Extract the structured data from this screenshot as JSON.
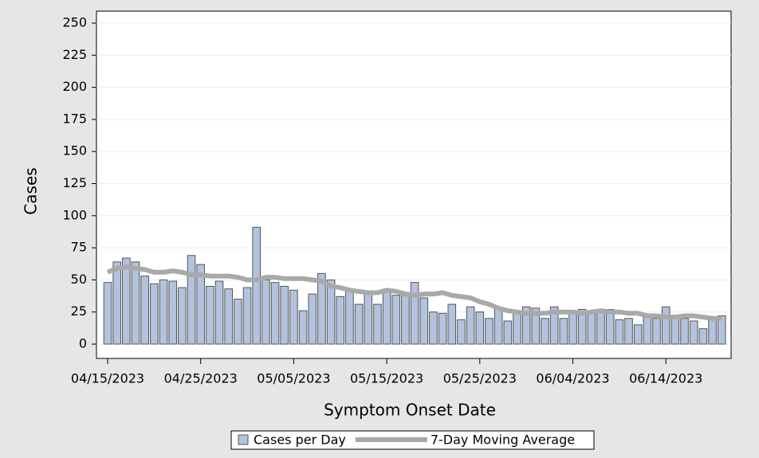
{
  "chart_data": {
    "type": "bar_line",
    "x_label": "Symptom Onset Date",
    "y_label": "Cases",
    "x": [
      "04/15/2023",
      "04/16/2023",
      "04/17/2023",
      "04/18/2023",
      "04/19/2023",
      "04/20/2023",
      "04/21/2023",
      "04/22/2023",
      "04/23/2023",
      "04/24/2023",
      "04/25/2023",
      "04/26/2023",
      "04/27/2023",
      "04/28/2023",
      "04/29/2023",
      "04/30/2023",
      "05/01/2023",
      "05/02/2023",
      "05/03/2023",
      "05/04/2023",
      "05/05/2023",
      "05/06/2023",
      "05/07/2023",
      "05/08/2023",
      "05/09/2023",
      "05/10/2023",
      "05/11/2023",
      "05/12/2023",
      "05/13/2023",
      "05/14/2023",
      "05/15/2023",
      "05/16/2023",
      "05/17/2023",
      "05/18/2023",
      "05/19/2023",
      "05/20/2023",
      "05/21/2023",
      "05/22/2023",
      "05/23/2023",
      "05/24/2023",
      "05/25/2023",
      "05/26/2023",
      "05/27/2023",
      "05/28/2023",
      "05/29/2023",
      "05/30/2023",
      "05/31/2023",
      "06/01/2023",
      "06/02/2023",
      "06/03/2023",
      "06/04/2023",
      "06/05/2023",
      "06/06/2023",
      "06/07/2023",
      "06/08/2023",
      "06/09/2023",
      "06/10/2023",
      "06/11/2023",
      "06/12/2023",
      "06/13/2023",
      "06/14/2023",
      "06/15/2023",
      "06/16/2023",
      "06/17/2023",
      "06/18/2023",
      "06/19/2023",
      "06/20/2023"
    ],
    "xticks": [
      "04/15/2023",
      "04/25/2023",
      "05/05/2023",
      "05/15/2023",
      "05/25/2023",
      "06/04/2023",
      "06/14/2023"
    ],
    "series": [
      {
        "name": "Cases per Day",
        "type": "bar",
        "color": "#b3c3de",
        "values": [
          48,
          64,
          67,
          64,
          53,
          47,
          50,
          49,
          44,
          69,
          62,
          45,
          49,
          43,
          35,
          44,
          91,
          50,
          48,
          45,
          42,
          26,
          39,
          55,
          50,
          37,
          41,
          31,
          40,
          31,
          41,
          38,
          38,
          48,
          36,
          25,
          24,
          31,
          19,
          29,
          25,
          20,
          28,
          18,
          24,
          29,
          28,
          20,
          29,
          20,
          26,
          27,
          26,
          25,
          27,
          19,
          20,
          15,
          22,
          20,
          29,
          22,
          20,
          18,
          12,
          20,
          22
        ]
      },
      {
        "name": "7-Day Moving Average",
        "type": "line",
        "color": "#a9a9a9",
        "values": [
          56,
          59,
          60,
          59,
          58,
          56,
          56,
          57,
          56,
          54,
          54,
          53,
          53,
          53,
          52,
          50,
          50,
          52,
          52,
          51,
          51,
          51,
          50,
          49,
          45,
          44,
          42,
          41,
          40,
          40,
          42,
          41,
          39,
          38,
          39,
          39,
          40,
          38,
          37,
          36,
          33,
          31,
          28,
          26,
          25,
          24,
          24,
          24,
          25,
          25,
          25,
          24,
          25,
          26,
          25,
          25,
          24,
          24,
          22,
          22,
          21,
          21,
          22,
          22,
          21,
          20,
          20
        ]
      }
    ],
    "ylim": [
      0,
      250
    ],
    "yticks": [
      0,
      25,
      50,
      75,
      100,
      125,
      150,
      175,
      200,
      225,
      250
    ],
    "grid": true
  }
}
